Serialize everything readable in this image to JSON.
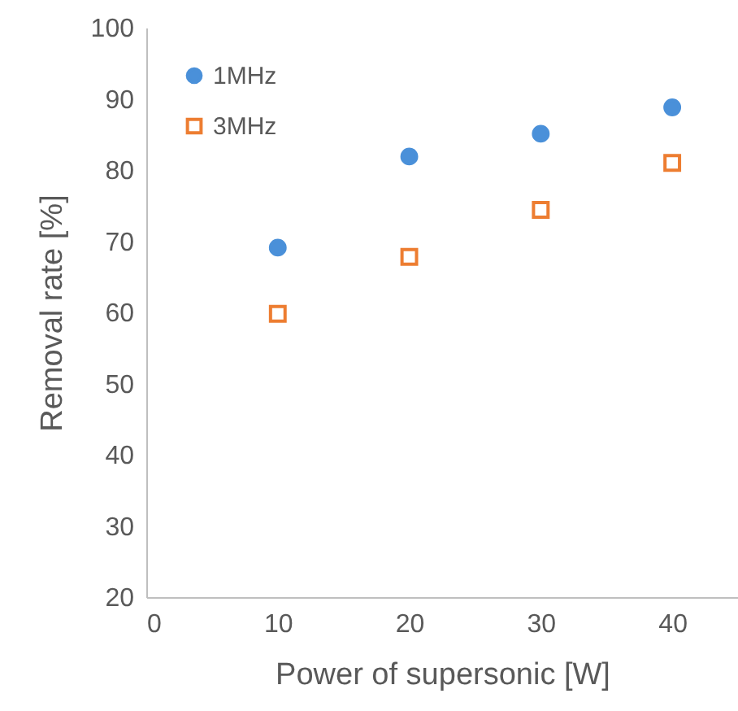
{
  "chart_data": {
    "type": "scatter",
    "xlabel": "Power  of supersonic  [W]",
    "ylabel": "Removal rate   [%]",
    "x": [
      10,
      20,
      30,
      40
    ],
    "series": [
      {
        "name": "1MHz",
        "color": "#4a90d9",
        "marker": "circle",
        "values": [
          69.1,
          81.9,
          85.1,
          88.8
        ]
      },
      {
        "name": "3MHz",
        "color": "#ed7d31",
        "marker": "square",
        "values": [
          59.8,
          67.8,
          74.4,
          81
        ]
      }
    ],
    "xlim": [
      0,
      45
    ],
    "xticks": [
      0,
      10,
      20,
      30,
      40
    ],
    "ylim": [
      20,
      100
    ],
    "yticks": [
      20,
      30,
      40,
      50,
      60,
      70,
      80,
      90,
      100
    ],
    "grid": false,
    "legend": "top left"
  }
}
